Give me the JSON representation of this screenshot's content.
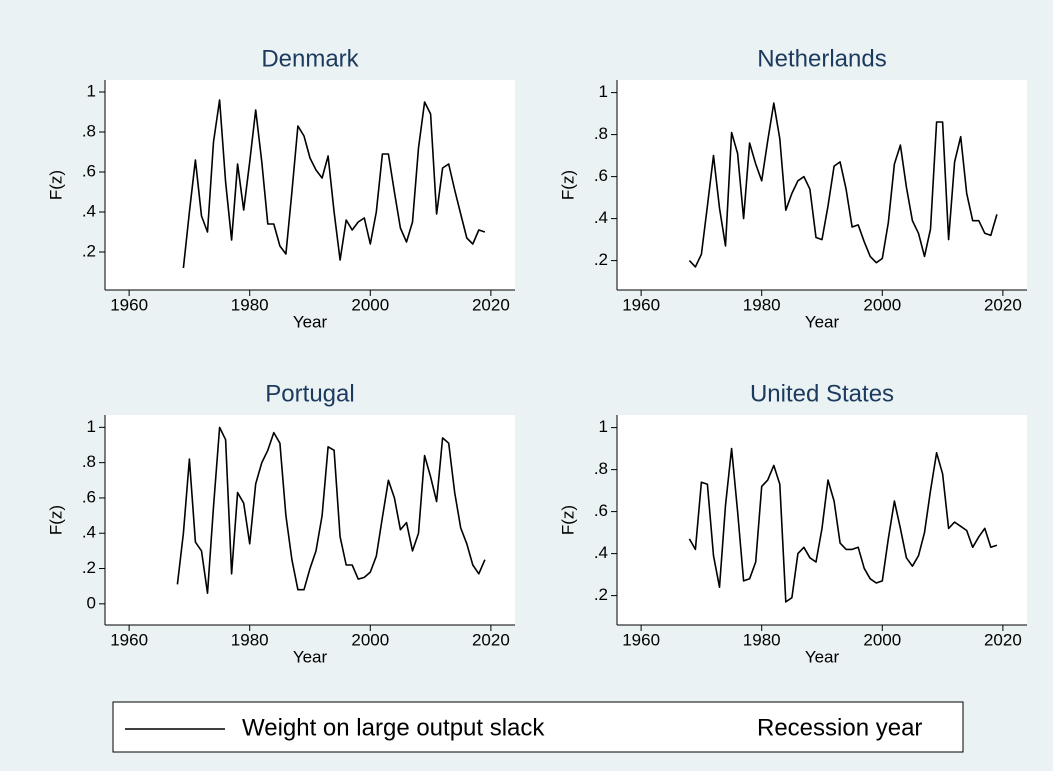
{
  "chart_data": [
    {
      "type": "line",
      "title": "Denmark",
      "xlabel": "Year",
      "ylabel": "F(z)",
      "x": [
        1969,
        1970,
        1971,
        1972,
        1973,
        1974,
        1975,
        1976,
        1977,
        1978,
        1979,
        1980,
        1981,
        1982,
        1983,
        1984,
        1985,
        1986,
        1987,
        1988,
        1989,
        1990,
        1991,
        1992,
        1993,
        1994,
        1995,
        1996,
        1997,
        1998,
        1999,
        2000,
        2001,
        2002,
        2003,
        2004,
        2005,
        2006,
        2007,
        2008,
        2009,
        2010,
        2011,
        2012,
        2013,
        2014,
        2015,
        2016,
        2017,
        2018,
        2019
      ],
      "series": [
        {
          "color": "#000000",
          "values": [
            0.12,
            0.4,
            0.66,
            0.38,
            0.3,
            0.75,
            0.96,
            0.55,
            0.26,
            0.64,
            0.41,
            0.65,
            0.91,
            0.65,
            0.34,
            0.34,
            0.23,
            0.19,
            0.5,
            0.83,
            0.78,
            0.67,
            0.61,
            0.57,
            0.68,
            0.4,
            0.16,
            0.36,
            0.31,
            0.35,
            0.37,
            0.24,
            0.4,
            0.69,
            0.69,
            0.5,
            0.32,
            0.25,
            0.35,
            0.72,
            0.95,
            0.89,
            0.39,
            0.62,
            0.64,
            0.51,
            0.39,
            0.27,
            0.24,
            0.31,
            0.3
          ]
        }
      ],
      "xlim": [
        1956,
        2024
      ],
      "ylim": [
        0.01,
        1.06
      ],
      "xticks": [
        1960,
        1980,
        2000,
        2020
      ],
      "yticks": [
        {
          "value": 0.2,
          "label": ".2"
        },
        {
          "value": 0.4,
          "label": ".4"
        },
        {
          "value": 0.6,
          "label": ".6"
        },
        {
          "value": 0.8,
          "label": ".8"
        },
        1
      ]
    },
    {
      "type": "line",
      "title": "Netherlands",
      "xlabel": "Year",
      "ylabel": "F(z)",
      "x": [
        1968,
        1969,
        1970,
        1971,
        1972,
        1973,
        1974,
        1975,
        1976,
        1977,
        1978,
        1979,
        1980,
        1981,
        1982,
        1983,
        1984,
        1985,
        1986,
        1987,
        1988,
        1989,
        1990,
        1991,
        1992,
        1993,
        1994,
        1995,
        1996,
        1997,
        1998,
        1999,
        2000,
        2001,
        2002,
        2003,
        2004,
        2005,
        2006,
        2007,
        2008,
        2009,
        2010,
        2011,
        2012,
        2013,
        2014,
        2015,
        2016,
        2017,
        2018,
        2019
      ],
      "series": [
        {
          "color": "#000000",
          "values": [
            0.2,
            0.17,
            0.23,
            0.46,
            0.7,
            0.45,
            0.27,
            0.81,
            0.71,
            0.4,
            0.76,
            0.66,
            0.58,
            0.77,
            0.95,
            0.78,
            0.44,
            0.52,
            0.58,
            0.6,
            0.54,
            0.31,
            0.3,
            0.46,
            0.65,
            0.67,
            0.54,
            0.36,
            0.37,
            0.29,
            0.22,
            0.19,
            0.21,
            0.38,
            0.66,
            0.75,
            0.55,
            0.39,
            0.33,
            0.22,
            0.35,
            0.86,
            0.86,
            0.3,
            0.67,
            0.79,
            0.52,
            0.39,
            0.39,
            0.33,
            0.32,
            0.42
          ]
        }
      ],
      "xlim": [
        1956,
        2024
      ],
      "ylim": [
        0.06,
        1.06
      ],
      "xticks": [
        1960,
        1980,
        2000,
        2020
      ],
      "yticks": [
        {
          "value": 0.2,
          "label": ".2"
        },
        {
          "value": 0.4,
          "label": ".4"
        },
        {
          "value": 0.6,
          "label": ".6"
        },
        {
          "value": 0.8,
          "label": ".8"
        },
        1
      ]
    },
    {
      "type": "line",
      "title": "Portugal",
      "xlabel": "Year",
      "ylabel": "F(z)",
      "x": [
        1968,
        1969,
        1970,
        1971,
        1972,
        1973,
        1974,
        1975,
        1976,
        1977,
        1978,
        1979,
        1980,
        1981,
        1982,
        1983,
        1984,
        1985,
        1986,
        1987,
        1988,
        1989,
        1990,
        1991,
        1992,
        1993,
        1994,
        1995,
        1996,
        1997,
        1998,
        1999,
        2000,
        2001,
        2002,
        2003,
        2004,
        2005,
        2006,
        2007,
        2008,
        2009,
        2010,
        2011,
        2012,
        2013,
        2014,
        2015,
        2016,
        2017,
        2018,
        2019
      ],
      "series": [
        {
          "color": "#000000",
          "values": [
            0.11,
            0.4,
            0.82,
            0.35,
            0.3,
            0.06,
            0.55,
            1.0,
            0.93,
            0.17,
            0.63,
            0.57,
            0.34,
            0.68,
            0.8,
            0.87,
            0.97,
            0.91,
            0.5,
            0.25,
            0.08,
            0.08,
            0.2,
            0.3,
            0.5,
            0.89,
            0.87,
            0.38,
            0.22,
            0.22,
            0.14,
            0.15,
            0.18,
            0.27,
            0.49,
            0.7,
            0.6,
            0.42,
            0.46,
            0.3,
            0.4,
            0.84,
            0.72,
            0.58,
            0.94,
            0.91,
            0.63,
            0.43,
            0.34,
            0.22,
            0.17,
            0.25
          ]
        }
      ],
      "xlim": [
        1956,
        2024
      ],
      "ylim": [
        -0.12,
        1.07
      ],
      "xticks": [
        1960,
        1980,
        2000,
        2020
      ],
      "yticks": [
        0,
        {
          "value": 0.2,
          "label": ".2"
        },
        {
          "value": 0.4,
          "label": ".4"
        },
        {
          "value": 0.6,
          "label": ".6"
        },
        {
          "value": 0.8,
          "label": ".8"
        },
        1
      ]
    },
    {
      "type": "line",
      "title": "United States",
      "xlabel": "Year",
      "ylabel": "F(z)",
      "x": [
        1968,
        1969,
        1970,
        1971,
        1972,
        1973,
        1974,
        1975,
        1976,
        1977,
        1978,
        1979,
        1980,
        1981,
        1982,
        1983,
        1984,
        1985,
        1986,
        1987,
        1988,
        1989,
        1990,
        1991,
        1992,
        1993,
        1994,
        1995,
        1996,
        1997,
        1998,
        1999,
        2000,
        2001,
        2002,
        2003,
        2004,
        2005,
        2006,
        2007,
        2008,
        2009,
        2010,
        2011,
        2012,
        2013,
        2014,
        2015,
        2016,
        2017,
        2018,
        2019
      ],
      "series": [
        {
          "color": "#000000",
          "values": [
            0.47,
            0.42,
            0.74,
            0.73,
            0.39,
            0.24,
            0.63,
            0.9,
            0.6,
            0.27,
            0.28,
            0.36,
            0.72,
            0.75,
            0.82,
            0.73,
            0.17,
            0.19,
            0.4,
            0.43,
            0.38,
            0.36,
            0.52,
            0.75,
            0.65,
            0.45,
            0.42,
            0.42,
            0.43,
            0.33,
            0.28,
            0.26,
            0.27,
            0.47,
            0.65,
            0.52,
            0.38,
            0.34,
            0.39,
            0.5,
            0.7,
            0.88,
            0.78,
            0.52,
            0.55,
            0.53,
            0.51,
            0.43,
            0.48,
            0.52,
            0.43,
            0.44
          ]
        }
      ],
      "xlim": [
        1956,
        2024
      ],
      "ylim": [
        0.06,
        1.06
      ],
      "xticks": [
        1960,
        1980,
        2000,
        2020
      ],
      "yticks": [
        {
          "value": 0.2,
          "label": ".2"
        },
        {
          "value": 0.4,
          "label": ".4"
        },
        {
          "value": 0.6,
          "label": ".6"
        },
        {
          "value": 0.8,
          "label": ".8"
        },
        1
      ]
    }
  ],
  "legend": {
    "items": [
      {
        "label": "Weight on large output slack",
        "color": "#000000"
      },
      {
        "label": "Recession year"
      }
    ]
  }
}
